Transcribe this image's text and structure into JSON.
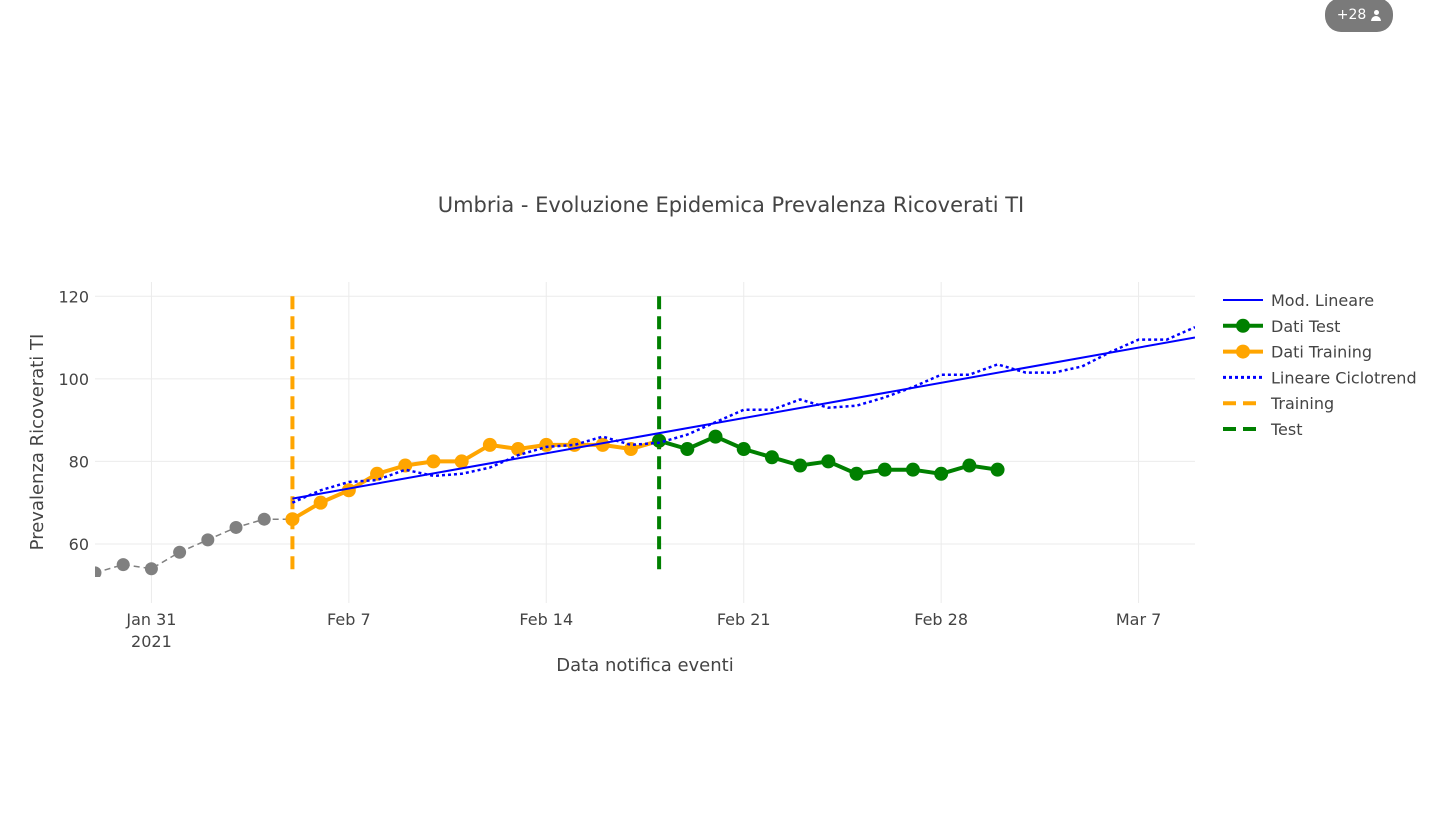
{
  "badge": {
    "count_label": "+28",
    "icon": "user-icon"
  },
  "chart_data": {
    "type": "line",
    "title": "Umbria - Evoluzione Epidemica Prevalenza Ricoverati TI",
    "xlabel": "Data notifica eventi",
    "ylabel": "Prevalenza Ricoverati TI",
    "x_axis_type": "date",
    "xlim": [
      "2021-01-29",
      "2021-03-09"
    ],
    "ylim": [
      52,
      122
    ],
    "grid": true,
    "legend_position": "right",
    "x_ticks": [
      {
        "date": "2021-01-31",
        "label": "Jan 31",
        "sublabel": "2021"
      },
      {
        "date": "2021-02-07",
        "label": "Feb 7",
        "sublabel": ""
      },
      {
        "date": "2021-02-14",
        "label": "Feb 14",
        "sublabel": ""
      },
      {
        "date": "2021-02-21",
        "label": "Feb 21",
        "sublabel": ""
      },
      {
        "date": "2021-02-28",
        "label": "Feb 28",
        "sublabel": ""
      },
      {
        "date": "2021-03-07",
        "label": "Mar 7",
        "sublabel": ""
      }
    ],
    "y_ticks": [
      {
        "value": 60,
        "label": "60"
      },
      {
        "value": 80,
        "label": "80"
      },
      {
        "value": 100,
        "label": "100"
      },
      {
        "value": 120,
        "label": "120"
      }
    ],
    "colors": {
      "history": "#808080",
      "training": "#ffa500",
      "test": "#008000",
      "model": "#0000ff",
      "grid": "#ebebeb",
      "text": "#444444"
    },
    "history_points": {
      "dates": [
        "2021-01-29",
        "2021-01-30",
        "2021-01-31",
        "2021-02-01",
        "2021-02-02",
        "2021-02-03",
        "2021-02-04",
        "2021-02-05"
      ],
      "values": [
        53,
        55,
        54,
        58,
        61,
        64,
        66,
        66
      ]
    },
    "series": [
      {
        "name": "Mod. Lineare",
        "style": "solid",
        "color": "#0000ff",
        "dates": [
          "2021-02-05",
          "2021-03-09"
        ],
        "values": [
          71,
          110
        ]
      },
      {
        "name": "Dati Test",
        "style": "lines+markers",
        "color": "#008000",
        "dates": [
          "2021-02-18",
          "2021-02-19",
          "2021-02-20",
          "2021-02-21",
          "2021-02-22",
          "2021-02-23",
          "2021-02-24",
          "2021-02-25",
          "2021-02-26",
          "2021-02-27",
          "2021-02-28",
          "2021-03-01",
          "2021-03-02"
        ],
        "values": [
          85,
          83,
          86,
          83,
          81,
          79,
          80,
          77,
          78,
          78,
          77,
          79,
          78
        ]
      },
      {
        "name": "Dati Training",
        "style": "lines+markers",
        "color": "#ffa500",
        "dates": [
          "2021-02-05",
          "2021-02-06",
          "2021-02-07",
          "2021-02-08",
          "2021-02-09",
          "2021-02-10",
          "2021-02-11",
          "2021-02-12",
          "2021-02-13",
          "2021-02-14",
          "2021-02-15",
          "2021-02-16",
          "2021-02-17",
          "2021-02-18"
        ],
        "values": [
          66,
          70,
          73,
          77,
          79,
          80,
          80,
          84,
          83,
          84,
          84,
          84,
          83,
          85
        ]
      },
      {
        "name": "Lineare Ciclotrend",
        "style": "dot",
        "color": "#0000ff",
        "dates": [
          "2021-02-05",
          "2021-02-06",
          "2021-02-07",
          "2021-02-08",
          "2021-02-09",
          "2021-02-10",
          "2021-02-11",
          "2021-02-12",
          "2021-02-13",
          "2021-02-14",
          "2021-02-15",
          "2021-02-16",
          "2021-02-17",
          "2021-02-18",
          "2021-02-19",
          "2021-02-20",
          "2021-02-21",
          "2021-02-22",
          "2021-02-23",
          "2021-02-24",
          "2021-02-25",
          "2021-02-26",
          "2021-02-27",
          "2021-02-28",
          "2021-03-01",
          "2021-03-02",
          "2021-03-03",
          "2021-03-04",
          "2021-03-05",
          "2021-03-06",
          "2021-03-07",
          "2021-03-08",
          "2021-03-09"
        ],
        "values": [
          70,
          73,
          75,
          75.5,
          78,
          76.5,
          77,
          78.5,
          81.5,
          83.5,
          84,
          86,
          84,
          84.5,
          86.5,
          89.5,
          92.5,
          92.5,
          95,
          93,
          93.5,
          95.5,
          98,
          101,
          101,
          103.5,
          101.5,
          101.5,
          103,
          106.5,
          109.5,
          109.5,
          112.5
        ]
      },
      {
        "name": "Training",
        "style": "dash",
        "color": "#ffa500",
        "vertical_at": "2021-02-05",
        "y_range": [
          53,
          120
        ]
      },
      {
        "name": "Test",
        "style": "dash",
        "color": "#008000",
        "vertical_at": "2021-02-18",
        "y_range": [
          53,
          120
        ]
      }
    ]
  }
}
